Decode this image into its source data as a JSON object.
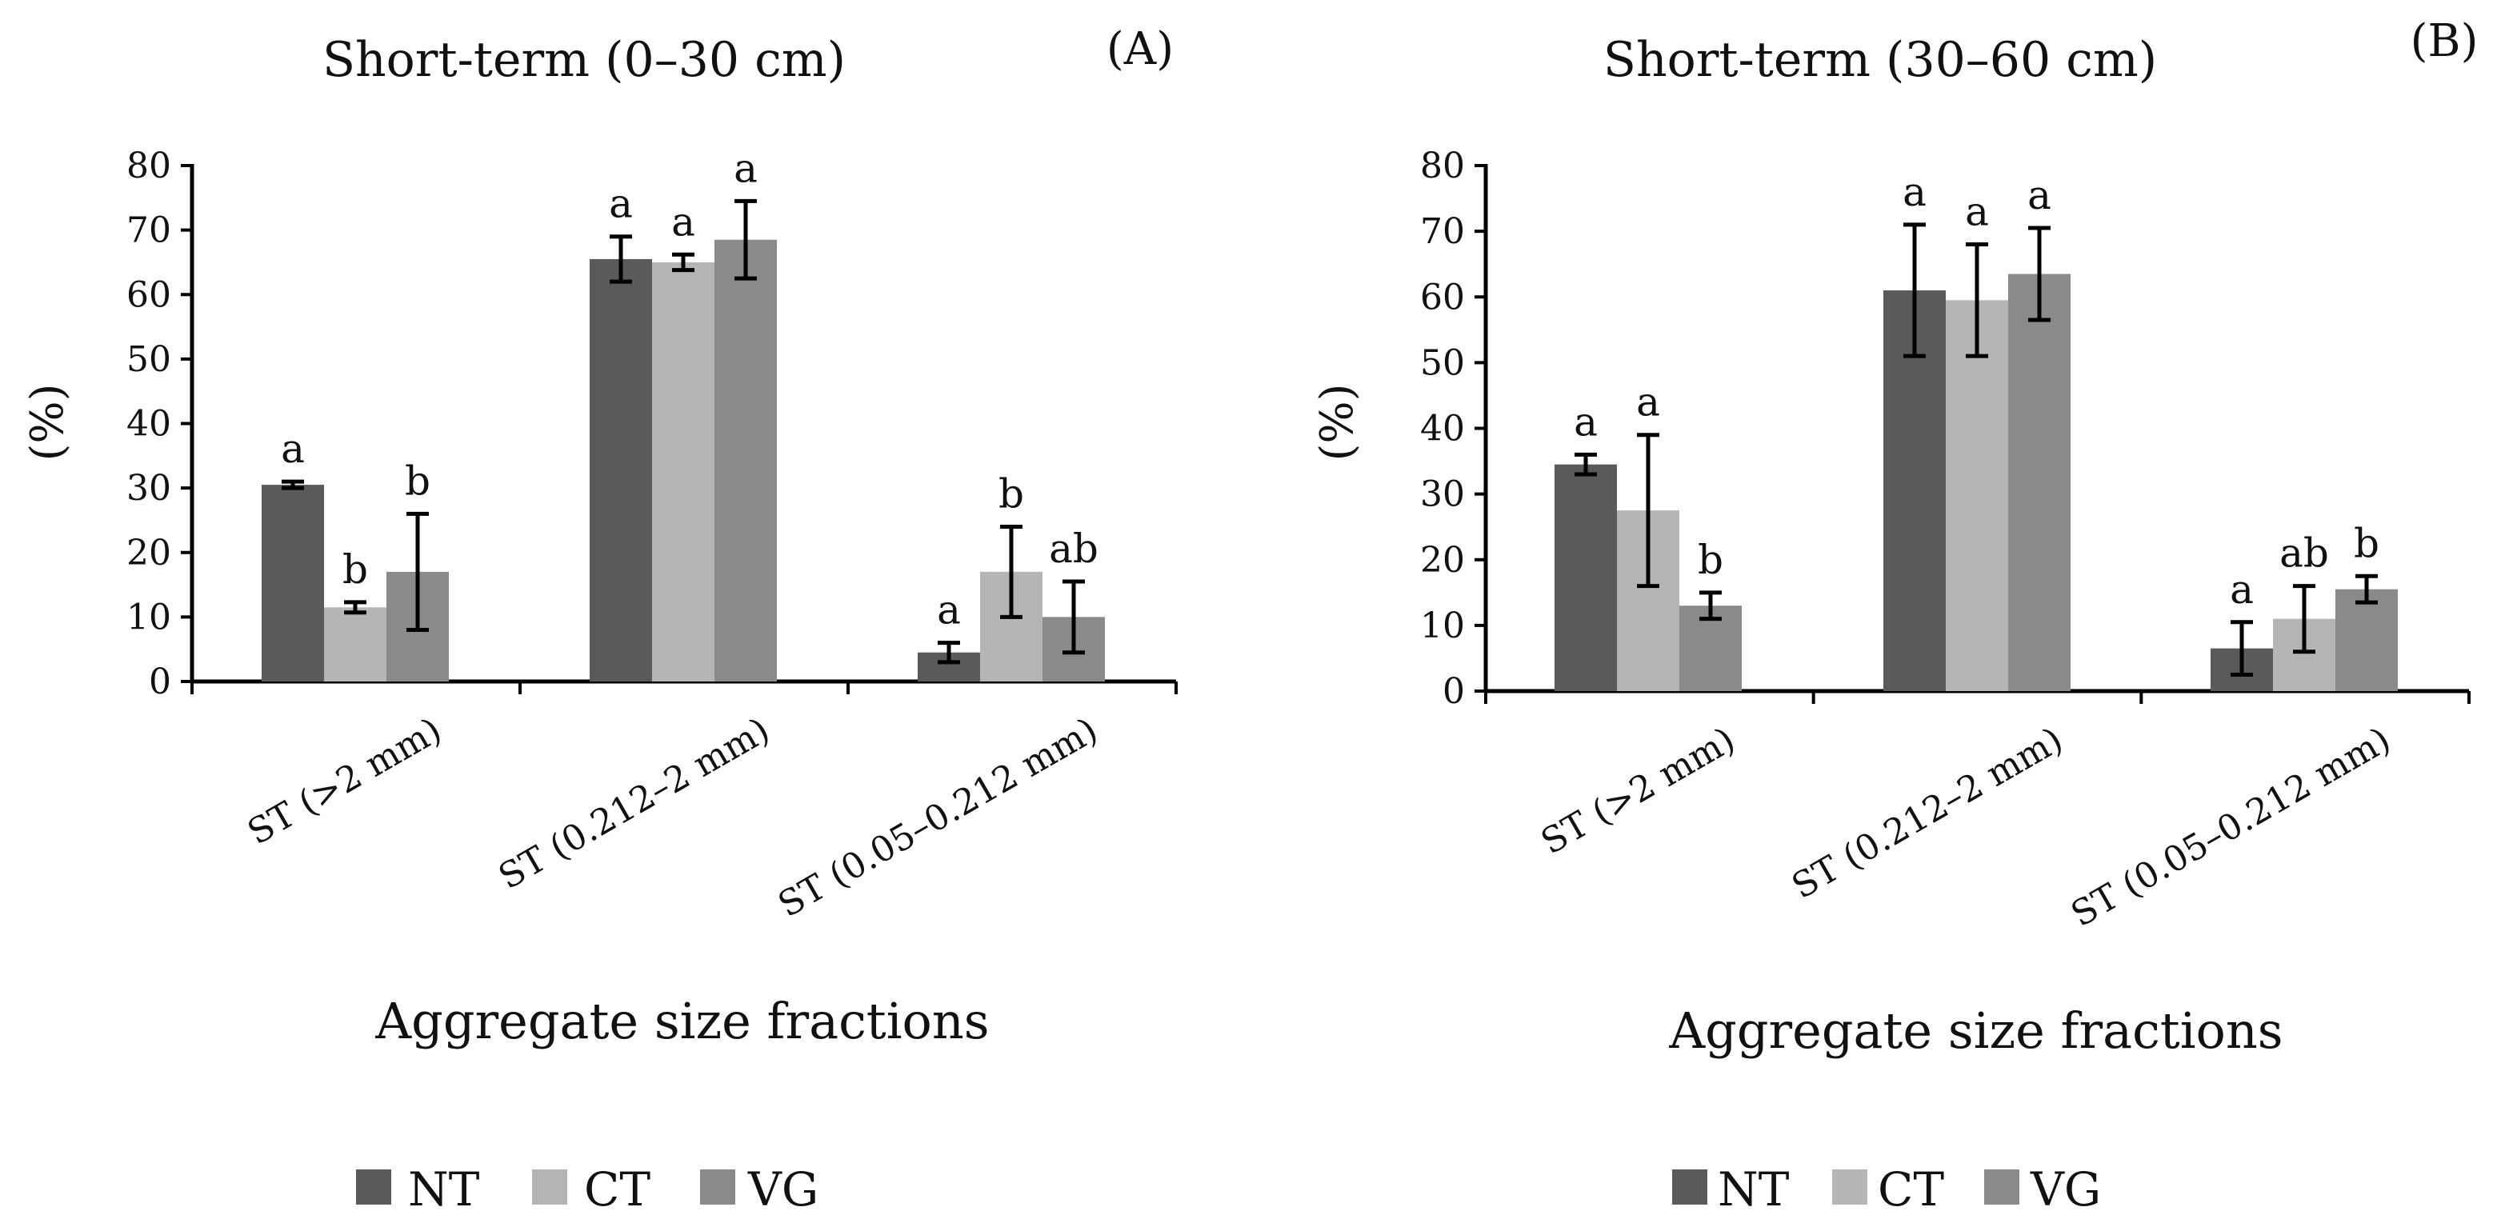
{
  "colors": {
    "NT": "#5a5a5a",
    "CT": "#b5b5b5",
    "VG": "#8a8a8a",
    "axis": "#000000"
  },
  "chart_data": [
    {
      "type": "bar",
      "panel": "(A)",
      "title": "Short-term (0–30 cm)",
      "xlabel": "Aggregate size fractions",
      "ylabel": "(%)",
      "ylim": [
        0,
        80
      ],
      "yticks": [
        0,
        10,
        20,
        30,
        40,
        50,
        60,
        70,
        80
      ],
      "categories": [
        "ST (>2 mm)",
        "ST (0.212–2 mm)",
        "ST (0.05–0.212 mm)"
      ],
      "series": [
        {
          "name": "NT",
          "values": [
            30.5,
            65.5,
            4.5
          ],
          "errors": [
            0.5,
            3.5,
            1.5
          ],
          "sig": [
            "a",
            "a",
            "a"
          ]
        },
        {
          "name": "CT",
          "values": [
            11.5,
            65,
            17
          ],
          "errors": [
            0.8,
            1.2,
            7
          ],
          "sig": [
            "b",
            "a",
            "b"
          ]
        },
        {
          "name": "VG",
          "values": [
            17,
            68.5,
            10
          ],
          "errors": [
            9,
            6,
            5.5
          ],
          "sig": [
            "b",
            "a",
            "ab"
          ]
        }
      ],
      "legend": [
        "NT",
        "CT",
        "VG"
      ]
    },
    {
      "type": "bar",
      "panel": "(B)",
      "title": "Short-term (30–60 cm)",
      "xlabel": "Aggregate size fractions",
      "ylabel": "(%)",
      "ylim": [
        0,
        80
      ],
      "yticks": [
        0,
        10,
        20,
        30,
        40,
        50,
        60,
        70,
        80
      ],
      "categories": [
        "ST (>2 mm)",
        "ST (0.212–2 mm)",
        "ST (0.05–0.212 mm)"
      ],
      "series": [
        {
          "name": "NT",
          "values": [
            34.5,
            61,
            6.5
          ],
          "errors": [
            1.5,
            10,
            4
          ],
          "sig": [
            "a",
            "a",
            "a"
          ]
        },
        {
          "name": "CT",
          "values": [
            27.5,
            59.5,
            11
          ],
          "errors": [
            11.5,
            8.5,
            5
          ],
          "sig": [
            "a",
            "a",
            "ab"
          ]
        },
        {
          "name": "VG",
          "values": [
            13,
            63.5,
            15.5
          ],
          "errors": [
            2,
            7,
            2
          ],
          "sig": [
            "b",
            "a",
            "b"
          ]
        }
      ],
      "legend": [
        "NT",
        "CT",
        "VG"
      ]
    }
  ]
}
